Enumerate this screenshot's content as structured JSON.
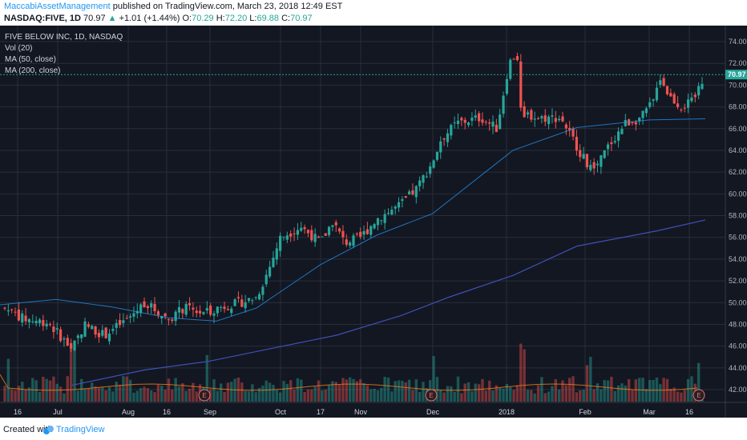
{
  "header": {
    "author": "MaccabiAssetManagement",
    "published_text": "published on TradingView.com, March 23, 2018 12:49 EST",
    "symbol": "NASDAQ:FIVE, 1D",
    "last": "70.97",
    "change_arrow": "▲",
    "change": "+1.01 (+1.44%)",
    "o_label": "O:",
    "o_value": "70.29",
    "h_label": "H:",
    "h_value": "72.20",
    "l_label": "L:",
    "l_value": "69.88",
    "c_label": "C:",
    "c_value": "70.97"
  },
  "legend": {
    "title": "FIVE BELOW INC, 1D, NASDAQ",
    "vol": "Vol (20)",
    "ma50": "MA (50, close)",
    "ma200": "MA (200, close)"
  },
  "footer": {
    "created_with": "Created with",
    "brand": "TradingView"
  },
  "colors": {
    "background": "#131722",
    "grid": "#2a2e39",
    "up": "#26a69a",
    "down": "#ef5350",
    "ma50": "#2196f3",
    "ma200": "#3f51b5",
    "vol_ma": "#f57f17",
    "earnings": "#e57373"
  },
  "chart_data": {
    "type": "candlestick",
    "y_axis_ticks": [
      "74.00",
      "72.00",
      "70.00",
      "68.00",
      "66.00",
      "64.00",
      "62.00",
      "60.00",
      "58.00",
      "56.00",
      "54.00",
      "52.00",
      "50.00",
      "48.00",
      "46.00",
      "44.00",
      "42.00"
    ],
    "ylim": [
      41,
      75
    ],
    "x_axis_labels": [
      "16",
      "Jul",
      "Aug",
      "16",
      "Sep",
      "Oct",
      "17",
      "Nov",
      "Dec",
      "2018",
      "Feb",
      "Mar",
      "16"
    ],
    "last_price_label": "70.97",
    "earnings_marker": "E",
    "earnings_count": 3,
    "series": [
      {
        "name": "MA (50, close)",
        "values_approx": [
          49.8,
          50.3,
          49.6,
          48.6,
          48.3,
          49.5,
          53.5,
          56.2,
          58.2,
          64.0,
          66.1,
          66.8,
          66.9
        ]
      },
      {
        "name": "MA (200, close)",
        "values_approx": [
          42.4,
          43.8,
          44.6,
          45.8,
          47.0,
          48.8,
          50.5,
          52.5,
          55.2,
          56.6,
          57.6
        ]
      },
      {
        "name": "Vol (20)"
      }
    ]
  }
}
